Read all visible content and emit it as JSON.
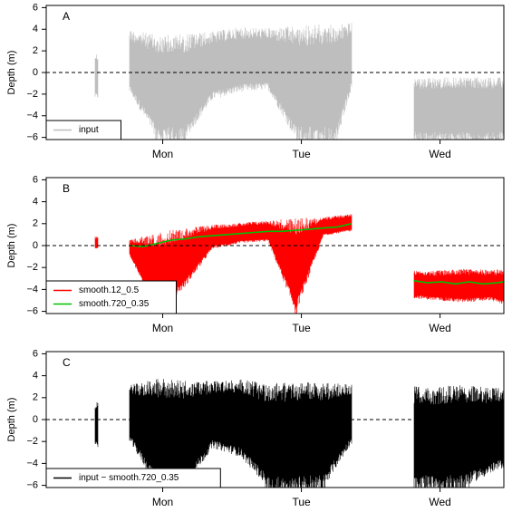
{
  "chart_data": [
    {
      "type": "line",
      "panel_label": "A",
      "ylabel": "Depth (m)",
      "ylim": [
        -6.2,
        6.2
      ],
      "yticks": [
        -6,
        -4,
        -2,
        0,
        2,
        4,
        6
      ],
      "xlim": [
        0,
        3.3
      ],
      "xticks": [
        {
          "label": "Mon",
          "x": 0.84
        },
        {
          "label": "Tue",
          "x": 1.84
        },
        {
          "label": "Wed",
          "x": 2.84
        }
      ],
      "reference_line": 0,
      "legend_position": "bottom-left",
      "series": [
        {
          "name": "input",
          "color": "#bebebe",
          "segments": [
            {
              "x": [
                0.35,
                0.37
              ],
              "low": [
                -2.4,
                -2.4
              ],
              "high": [
                1.8,
                1.8
              ]
            },
            {
              "x": [
                0.6,
                0.8,
                1.0,
                1.2,
                1.4,
                1.6,
                1.8,
                2.0,
                2.1,
                2.2
              ],
              "low": [
                -1.8,
                -6.2,
                -6.2,
                -2.5,
                -1.8,
                -1.6,
                -6.2,
                -6.2,
                -6.2,
                -1.5
              ],
              "high": [
                4.0,
                3.5,
                3.6,
                3.8,
                4.2,
                4.1,
                4.3,
                4.5,
                4.6,
                4.6
              ]
            },
            {
              "x": [
                2.65,
                2.8,
                3.0,
                3.2,
                3.3,
                3.45
              ],
              "low": [
                -6.1,
                -6.2,
                -6.2,
                -6.2,
                -6.1,
                -6.2
              ],
              "high": [
                -0.6,
                -0.5,
                -0.4,
                -0.5,
                -0.4,
                -0.4
              ]
            },
            {
              "x": [
                3.55,
                3.58
              ],
              "low": [
                -3.5,
                -3.5
              ],
              "high": [
                -3.0,
                -3.0
              ]
            }
          ]
        }
      ]
    },
    {
      "type": "line",
      "panel_label": "B",
      "ylabel": "Depth (m)",
      "ylim": [
        -6.2,
        6.2
      ],
      "yticks": [
        -6,
        -4,
        -2,
        0,
        2,
        4,
        6
      ],
      "xlim": [
        0,
        3.3
      ],
      "xticks": [
        {
          "label": "Mon",
          "x": 0.84
        },
        {
          "label": "Tue",
          "x": 1.84
        },
        {
          "label": "Wed",
          "x": 2.84
        }
      ],
      "reference_line": 0,
      "legend_position": "bottom-left",
      "series": [
        {
          "name": "smooth.12_0.5",
          "color": "#ff0000",
          "segments": [
            {
              "x": [
                0.35,
                0.37
              ],
              "low": [
                -0.3,
                -0.3
              ],
              "high": [
                0.8,
                0.8
              ]
            },
            {
              "x": [
                0.6,
                0.8,
                1.0,
                1.2,
                1.4,
                1.6,
                1.8,
                2.0,
                2.2
              ],
              "low": [
                -0.9,
                -6.2,
                -3.8,
                -0.3,
                0.2,
                0.4,
                -6.2,
                0.9,
                1.3
              ],
              "high": [
                0.5,
                1.2,
                1.6,
                1.9,
                2.1,
                2.3,
                2.5,
                2.6,
                2.9
              ]
            },
            {
              "x": [
                2.65,
                2.8,
                3.0,
                3.2,
                3.45
              ],
              "low": [
                -4.8,
                -5.0,
                -5.2,
                -5.0,
                -6.0
              ],
              "high": [
                -2.2,
                -2.3,
                -2.1,
                -2.2,
                -2.1
              ]
            },
            {
              "x": [
                3.55,
                3.58
              ],
              "low": [
                -2.5,
                -2.5
              ],
              "high": [
                -2.4,
                -2.4
              ]
            }
          ]
        },
        {
          "name": "smooth.720_0.35",
          "color": "#00c000",
          "lines": [
            {
              "x": [
                0.6,
                0.7,
                0.8,
                0.9,
                1.0,
                1.1,
                1.2,
                1.3,
                1.4,
                1.5,
                1.6,
                1.7,
                1.8,
                1.9,
                2.0,
                2.1,
                2.2
              ],
              "y": [
                0.0,
                -0.1,
                0.2,
                0.5,
                0.6,
                0.8,
                0.9,
                1.0,
                1.1,
                1.2,
                1.3,
                1.3,
                1.4,
                1.5,
                1.6,
                1.7,
                2.0
              ]
            },
            {
              "x": [
                2.65,
                2.75,
                2.85,
                2.95,
                3.05,
                3.15,
                3.25,
                3.35,
                3.45
              ],
              "y": [
                -3.2,
                -3.4,
                -3.3,
                -3.5,
                -3.3,
                -3.5,
                -3.4,
                -3.2,
                -3.1
              ]
            }
          ]
        }
      ]
    },
    {
      "type": "line",
      "panel_label": "C",
      "ylabel": "Depth (m)",
      "ylim": [
        -6.2,
        6.2
      ],
      "yticks": [
        -6,
        -4,
        -2,
        0,
        2,
        4,
        6
      ],
      "xlim": [
        0,
        3.3
      ],
      "xticks": [
        {
          "label": "Mon",
          "x": 0.84
        },
        {
          "label": "Tue",
          "x": 1.84
        },
        {
          "label": "Wed",
          "x": 2.84
        }
      ],
      "reference_line": 0,
      "legend_position": "bottom-left",
      "series": [
        {
          "name": "input − smooth.720_0.35",
          "color": "#000000",
          "segments": [
            {
              "x": [
                0.35,
                0.37
              ],
              "low": [
                -2.5,
                -2.5
              ],
              "high": [
                1.7,
                1.7
              ]
            },
            {
              "x": [
                0.6,
                0.8,
                1.0,
                1.2,
                1.4,
                1.6,
                1.8,
                2.0,
                2.2
              ],
              "low": [
                -2.0,
                -6.2,
                -6.2,
                -2.6,
                -3.4,
                -6.2,
                -6.2,
                -6.2,
                -2.2
              ],
              "high": [
                3.2,
                3.8,
                3.6,
                3.5,
                3.7,
                3.3,
                3.4,
                3.5,
                3.2
              ]
            },
            {
              "x": [
                2.65,
                2.8,
                3.0,
                3.2,
                3.45
              ],
              "low": [
                -6.2,
                -6.2,
                -6.2,
                -5.0,
                -3.5
              ],
              "high": [
                3.1,
                3.0,
                3.2,
                2.9,
                2.9
              ]
            },
            {
              "x": [
                3.52,
                3.53
              ],
              "low": [
                -0.8,
                -0.8
              ],
              "high": [
                -0.3,
                -0.3
              ]
            },
            {
              "x": [
                3.58,
                3.59
              ],
              "low": [
                -1.3,
                -1.3
              ],
              "high": [
                1.9,
                1.9
              ]
            }
          ]
        }
      ]
    }
  ]
}
